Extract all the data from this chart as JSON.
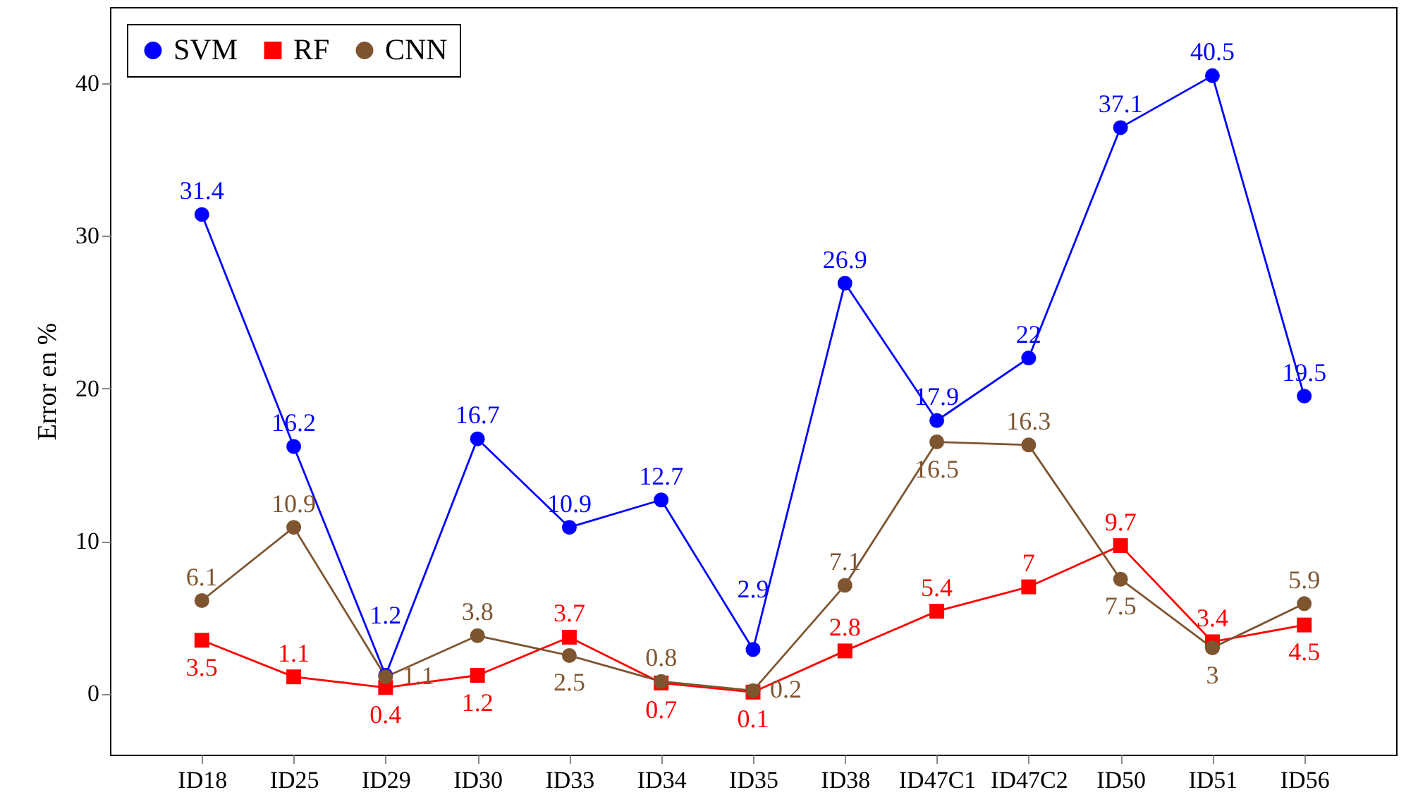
{
  "chart_data": {
    "type": "line",
    "ylabel": "Error en %",
    "categories": [
      "ID18",
      "ID25",
      "ID29",
      "ID30",
      "ID33",
      "ID34",
      "ID35",
      "ID38",
      "ID47C1",
      "ID47C2",
      "ID50",
      "ID51",
      "ID56"
    ],
    "series": [
      {
        "name": "SVM",
        "color": "#0000ff",
        "marker": "circle",
        "values": [
          31.4,
          16.2,
          1.2,
          16.7,
          10.9,
          12.7,
          2.9,
          26.9,
          17.9,
          22,
          37.1,
          40.5,
          19.5
        ]
      },
      {
        "name": "RF",
        "color": "#ff0000",
        "marker": "square",
        "values": [
          3.5,
          1.1,
          0.4,
          1.2,
          3.7,
          0.7,
          0.1,
          2.8,
          5.4,
          7,
          9.7,
          3.4,
          4.5
        ]
      },
      {
        "name": "CNN",
        "color": "#7f5530",
        "marker": "circle",
        "values": [
          6.1,
          10.9,
          1.1,
          3.8,
          2.5,
          0.8,
          0.2,
          7.1,
          16.5,
          16.3,
          7.5,
          3,
          5.9
        ]
      }
    ],
    "ylim": [
      -4,
      45
    ],
    "yticks": [
      0,
      10,
      20,
      30,
      40
    ],
    "grid": false,
    "legend": "top left",
    "data_labels": true,
    "line_style": "solid"
  }
}
